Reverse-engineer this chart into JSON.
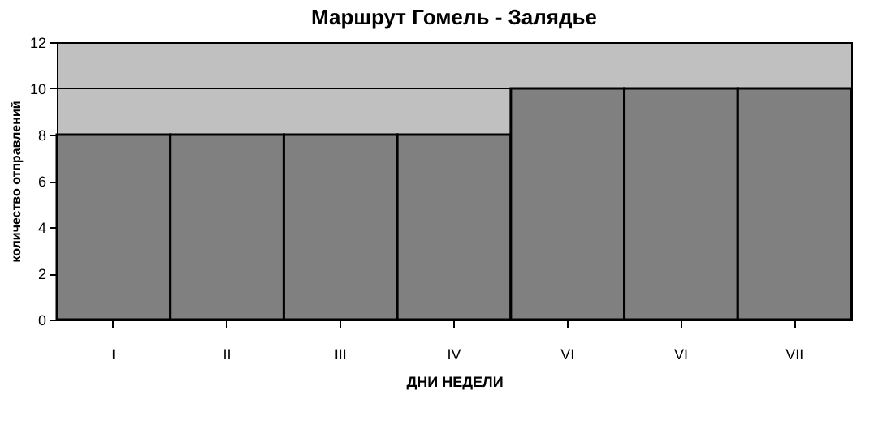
{
  "chart_data": {
    "type": "bar",
    "title": "Маршрут Гомель - Залядье",
    "xlabel": "ДНИ НЕДЕЛИ",
    "ylabel": "количество отправлений",
    "categories": [
      "I",
      "II",
      "III",
      "IV",
      "VI",
      "VI",
      "VII"
    ],
    "values": [
      8,
      8,
      8,
      8,
      10,
      10,
      10
    ],
    "color": "#808080",
    "ylim": [
      0,
      12
    ],
    "yticks": [
      0,
      2,
      4,
      6,
      8,
      10,
      12
    ],
    "grid": "y"
  }
}
